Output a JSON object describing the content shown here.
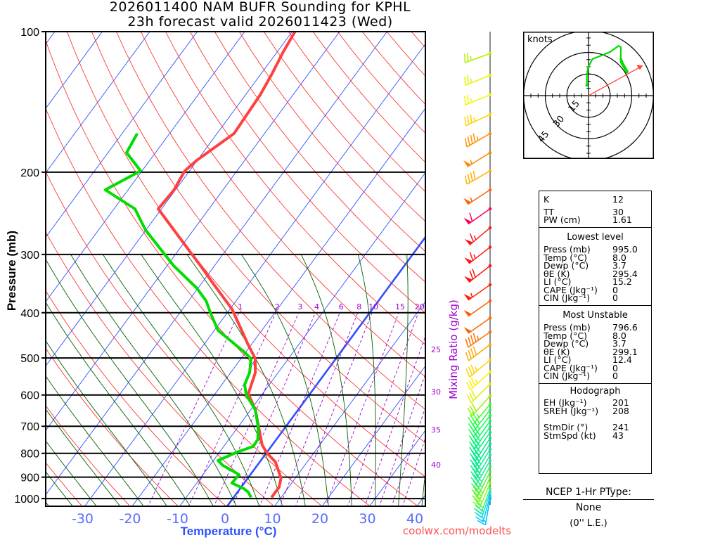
{
  "title": {
    "line1": "2026011400 NAM BUFR Sounding for KPHL",
    "line2": "23h forecast valid 2026011423 (Wed)"
  },
  "chart_data": {
    "type": "skew-t",
    "ylabel": "Pressure (mb)",
    "xlabel": "Temperature (°C)",
    "y_scale": "log",
    "pressure_range": [
      100,
      1040
    ],
    "pressure_ticks": [
      100,
      200,
      300,
      400,
      500,
      600,
      700,
      800,
      900,
      1000
    ],
    "temperature_ticks": [
      -30,
      -20,
      -10,
      0,
      10,
      20,
      30,
      40
    ],
    "isotherm_step_c": 10,
    "highlighted_isotherm_c": 0,
    "dry_adiabat_step_k": 10,
    "moist_adiabat_start_temps_c": [
      -40,
      -35,
      -30,
      -25,
      -20,
      -15,
      -10,
      -5,
      0,
      5,
      10,
      15,
      20,
      25,
      30,
      35,
      40
    ],
    "mixing_ratio_label": "Mixing Ratio (g/kg)",
    "mixing_ratios_top": [
      1,
      2,
      3,
      4,
      6,
      8,
      10,
      15,
      20
    ],
    "mixing_ratios_side": [
      25,
      30,
      35,
      40
    ],
    "temperature": [
      [
        100,
        -59.4
      ],
      [
        111,
        -58.7
      ],
      [
        123,
        -57.7
      ],
      [
        136.6,
        -56.9
      ],
      [
        165.3,
        -56.4
      ],
      [
        188.6,
        -60.1
      ],
      [
        198.7,
        -61.0
      ],
      [
        218.2,
        -60.3
      ],
      [
        239.6,
        -60.7
      ],
      [
        300,
        -46.5
      ],
      [
        319.5,
        -42.5
      ],
      [
        345.9,
        -37.6
      ],
      [
        393.4,
        -29.5
      ],
      [
        467.9,
        -20.7
      ],
      [
        501.4,
        -17.0
      ],
      [
        537.5,
        -14.8
      ],
      [
        596.4,
        -13.0
      ],
      [
        645.9,
        -9.0
      ],
      [
        702,
        -5.7
      ],
      [
        768.3,
        -2.1
      ],
      [
        800.8,
        0.3
      ],
      [
        834.8,
        3.3
      ],
      [
        904.2,
        7.0
      ],
      [
        945.9,
        8.0
      ],
      [
        969.2,
        8.0
      ],
      [
        995,
        8.0
      ]
    ],
    "dewpoint": [
      [
        165.3,
        -76.8
      ],
      [
        181.6,
        -76.1
      ],
      [
        198.7,
        -70.3
      ],
      [
        218.2,
        -74.8
      ],
      [
        239.6,
        -65.6
      ],
      [
        265.9,
        -60.1
      ],
      [
        317.3,
        -48.6
      ],
      [
        354.5,
        -40.2
      ],
      [
        377.4,
        -36.3
      ],
      [
        403.1,
        -33.2
      ],
      [
        436.5,
        -29.2
      ],
      [
        484.4,
        -20.5
      ],
      [
        501.4,
        -17.9
      ],
      [
        537.5,
        -16.0
      ],
      [
        570.1,
        -15.2
      ],
      [
        600.5,
        -13.2
      ],
      [
        645.9,
        -9.0
      ],
      [
        702,
        -5.8
      ],
      [
        747.2,
        -3.9
      ],
      [
        773.6,
        -3.8
      ],
      [
        795.3,
        -6.3
      ],
      [
        829.1,
        -9.0
      ],
      [
        849.5,
        -7.2
      ],
      [
        888.6,
        -2.4
      ],
      [
        926.3,
        -2.6
      ],
      [
        952.4,
        0.8
      ],
      [
        969.2,
        2.3
      ],
      [
        995,
        3.7
      ]
    ],
    "winds": [
      {
        "p": 111.4,
        "dir": 250,
        "spd": 25,
        "color": "#b4f000"
      },
      {
        "p": 124,
        "dir": 248,
        "spd": 25,
        "color": "#e4f400"
      },
      {
        "p": 136.6,
        "dir": 248,
        "spd": 25,
        "color": "#f4f400"
      },
      {
        "p": 150.4,
        "dir": 245,
        "spd": 35,
        "color": "#f8d400"
      },
      {
        "p": 165.3,
        "dir": 240,
        "spd": 45,
        "color": "#ff9000"
      },
      {
        "p": 181.6,
        "dir": 238,
        "spd": 55,
        "color": "#ff8800"
      },
      {
        "p": 198.7,
        "dir": 240,
        "spd": 40,
        "color": "#ffb000"
      },
      {
        "p": 218.2,
        "dir": 237,
        "spd": 55,
        "color": "#ff6400"
      },
      {
        "p": 239.6,
        "dir": 235,
        "spd": 60,
        "color": "#ff0058"
      },
      {
        "p": 263.1,
        "dir": 230,
        "spd": 65,
        "color": "#ff1818"
      },
      {
        "p": 289.4,
        "dir": 232,
        "spd": 65,
        "color": "#ff1818"
      },
      {
        "p": 317.3,
        "dir": 232,
        "spd": 70,
        "color": "#ff1010"
      },
      {
        "p": 348.5,
        "dir": 235,
        "spd": 55,
        "color": "#ff2000"
      },
      {
        "p": 377.4,
        "dir": 235,
        "spd": 50,
        "color": "#ff5a00"
      },
      {
        "p": 410.6,
        "dir": 235,
        "spd": 50,
        "color": "#ff6400"
      },
      {
        "p": 439.7,
        "dir": 235,
        "spd": 45,
        "color": "#ff7000"
      },
      {
        "p": 467.9,
        "dir": 233,
        "spd": 40,
        "color": "#ffa800"
      },
      {
        "p": 504.8,
        "dir": 230,
        "spd": 35,
        "color": "#ffd000"
      },
      {
        "p": 536,
        "dir": 228,
        "spd": 35,
        "color": "#fff000"
      },
      {
        "p": 568.2,
        "dir": 225,
        "spd": 30,
        "color": "#e0f000"
      },
      {
        "p": 603,
        "dir": 222,
        "spd": 30,
        "color": "#a0f000"
      },
      {
        "p": 628.2,
        "dir": 220,
        "spd": 35,
        "color": "#40ff20"
      },
      {
        "p": 646,
        "dir": 218,
        "spd": 35,
        "color": "#20ff40"
      },
      {
        "p": 664.3,
        "dir": 218,
        "spd": 40,
        "color": "#10ff50"
      },
      {
        "p": 683,
        "dir": 216,
        "spd": 40,
        "color": "#00ff60"
      },
      {
        "p": 702.2,
        "dir": 215,
        "spd": 40,
        "color": "#00f870"
      },
      {
        "p": 722,
        "dir": 215,
        "spd": 40,
        "color": "#00f080"
      },
      {
        "p": 742.6,
        "dir": 213,
        "spd": 40,
        "color": "#00ec88"
      },
      {
        "p": 763.4,
        "dir": 212,
        "spd": 40,
        "color": "#00e890"
      },
      {
        "p": 784.9,
        "dir": 212,
        "spd": 40,
        "color": "#10e890"
      },
      {
        "p": 807,
        "dir": 210,
        "spd": 40,
        "color": "#20e898"
      },
      {
        "p": 829.7,
        "dir": 210,
        "spd": 40,
        "color": "#20e8a0"
      },
      {
        "p": 853,
        "dir": 208,
        "spd": 40,
        "color": "#30f080"
      },
      {
        "p": 877,
        "dir": 207,
        "spd": 35,
        "color": "#50f040"
      },
      {
        "p": 901.7,
        "dir": 205,
        "spd": 35,
        "color": "#70f020"
      },
      {
        "p": 927,
        "dir": 203,
        "spd": 30,
        "color": "#80ff20"
      },
      {
        "p": 952.6,
        "dir": 200,
        "spd": 30,
        "color": "#40f080"
      },
      {
        "p": 969,
        "dir": 198,
        "spd": 25,
        "color": "#20e0c0"
      },
      {
        "p": 987,
        "dir": 195,
        "spd": 20,
        "color": "#00d0ff"
      },
      {
        "p": 1000,
        "dir": 190,
        "spd": 15,
        "color": "#00c0ff"
      }
    ]
  },
  "hodograph": {
    "units_label": "knots",
    "rings": [
      15,
      30,
      45
    ],
    "trace_uv_kt": [
      [
        -1.1,
        7.3
      ],
      [
        -1.1,
        14.1
      ],
      [
        -0.3,
        19.8
      ],
      [
        2.9,
        25.5
      ],
      [
        9.4,
        28.0
      ],
      [
        15.1,
        30.4
      ],
      [
        20.8,
        34.5
      ],
      [
        22.4,
        33.7
      ],
      [
        22.4,
        26.3
      ],
      [
        24.0,
        22.3
      ],
      [
        27.3,
        16.6
      ],
      [
        26.5,
        15.8
      ],
      [
        22.4,
        23.1
      ],
      [
        22.1,
        26.3
      ]
    ],
    "storm_motion_uv_kt": [
      37.6,
      20.8
    ],
    "trace_color": "#00dd00",
    "storm_color": "#ff4040"
  },
  "indices": {
    "k_label": "K",
    "k": "12",
    "tt_label": "TT",
    "tt": "30",
    "pw_label": "PW (cm)",
    "pw": "1.61"
  },
  "lowest_level": {
    "heading": "Lowest level",
    "rows": [
      {
        "label": "Press (mb)",
        "value": "995.0"
      },
      {
        "label": "Temp (°C)",
        "value": "8.0"
      },
      {
        "label": "Dewp (°C)",
        "value": "3.7"
      },
      {
        "label": "θE (K)",
        "value": "295.4"
      },
      {
        "label": "LI (°C)",
        "value": "15.2"
      },
      {
        "label": "CAPE (Jkg⁻¹)",
        "value": "0"
      },
      {
        "label": "CIN (Jkg⁻¹)",
        "value": "0"
      }
    ]
  },
  "most_unstable": {
    "heading": "Most Unstable",
    "rows": [
      {
        "label": "Press (mb)",
        "value": "796.6"
      },
      {
        "label": "Temp (°C)",
        "value": "8.0"
      },
      {
        "label": "Dewp (°C)",
        "value": "3.7"
      },
      {
        "label": "θE (K)",
        "value": "299.1"
      },
      {
        "label": "LI (°C)",
        "value": "12.4"
      },
      {
        "label": "CAPE (Jkg⁻¹)",
        "value": "0"
      },
      {
        "label": "CIN (Jkg⁻¹)",
        "value": "0"
      }
    ]
  },
  "hodograph_stats": {
    "heading": "Hodograph",
    "eh_label": "EH (Jkg⁻¹)",
    "eh": "201",
    "sreh_label": "SREH (Jkg⁻¹)",
    "sreh": "208",
    "stmdir_label": "StmDir (°)",
    "stmdir": "241",
    "stmspd_label": "StmSpd (kt)",
    "stmspd": "43"
  },
  "ptype": {
    "heading": "NCEP 1-Hr PType:",
    "value": "None",
    "liquid_equiv": "(0'' L.E.)"
  },
  "credit": "coolwx.com/modelts",
  "colors": {
    "isotherm": "#3050ff",
    "dry_adiabat": "#ff2020",
    "moist_adiabat": "#006000",
    "mixing_ratio": "#a000d0",
    "temperature_trace": "#ff4040",
    "dewpoint_trace": "#00dd00",
    "axis_label": "#3050ff",
    "tick_label": "#5a6cff",
    "credit": "#ff5050"
  }
}
